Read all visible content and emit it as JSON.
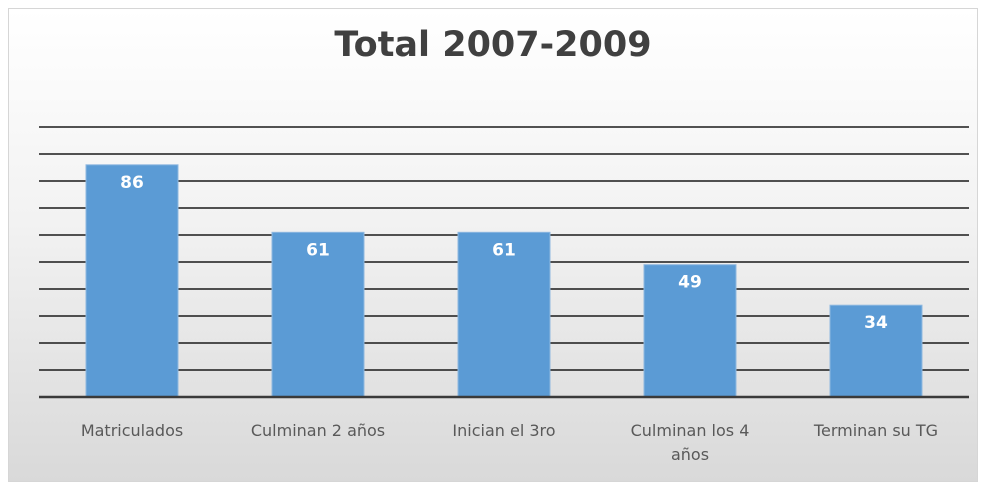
{
  "chart_data": {
    "type": "bar",
    "title": "Total 2007-2009",
    "categories": [
      "Matriculados",
      "Culminan 2 años",
      "Inician el 3ro",
      "Culminan los 4 años",
      "Terminan su TG"
    ],
    "values": [
      86,
      61,
      61,
      49,
      34
    ],
    "ylim": [
      0,
      100
    ],
    "grid": true,
    "legend": "none",
    "data_labels": true,
    "bar_color": "#5b9bd5",
    "label_color": "#ffffff"
  }
}
